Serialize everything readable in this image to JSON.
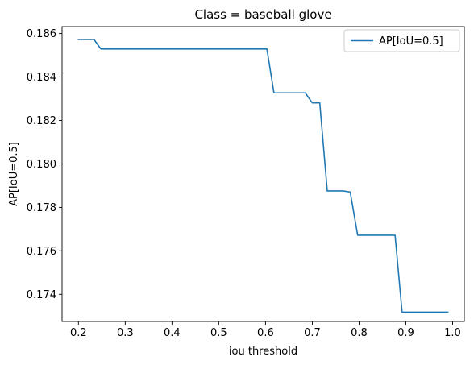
{
  "chart_data": {
    "type": "line",
    "title": "Class = baseball glove",
    "xlabel": "iou threshold",
    "ylabel": "AP[IoU=0.5]",
    "xlim": [
      0.165,
      1.025
    ],
    "ylim": [
      0.17275,
      0.18632
    ],
    "xticks": [
      0.2,
      0.3,
      0.4,
      0.5,
      0.6,
      0.7,
      0.8,
      0.9,
      1.0
    ],
    "xtick_labels": [
      "0.2",
      "0.3",
      "0.4",
      "0.5",
      "0.6",
      "0.7",
      "0.8",
      "0.9",
      "1.0"
    ],
    "yticks": [
      0.174,
      0.176,
      0.178,
      0.18,
      0.182,
      0.184,
      0.186
    ],
    "ytick_labels": [
      "0.174",
      "0.176",
      "0.178",
      "0.180",
      "0.182",
      "0.184",
      "0.186"
    ],
    "grid": false,
    "legend_position": "top-right",
    "series": [
      {
        "name": "AP[IoU=0.5]",
        "color": "#1f77b4",
        "x": [
          0.2,
          0.233,
          0.248,
          0.603,
          0.618,
          0.685,
          0.7,
          0.716,
          0.732,
          0.765,
          0.781,
          0.797,
          0.877,
          0.892,
          0.99
        ],
        "y": [
          0.18573,
          0.18573,
          0.18529,
          0.18529,
          0.18327,
          0.18327,
          0.18281,
          0.18281,
          0.17876,
          0.17876,
          0.17871,
          0.17672,
          0.17672,
          0.17318,
          0.17318
        ]
      }
    ]
  }
}
